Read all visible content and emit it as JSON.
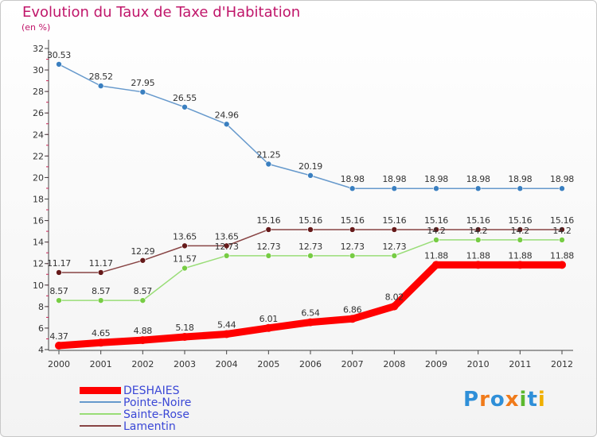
{
  "chart_data": {
    "type": "line",
    "title": "Evolution du Taux de Taxe d'Habitation",
    "unit_label": "(en %)",
    "x": [
      "2000",
      "2001",
      "2002",
      "2003",
      "2004",
      "2005",
      "2006",
      "2007",
      "2008",
      "2009",
      "2010",
      "2011",
      "2012"
    ],
    "ylim": [
      4,
      32
    ],
    "yticks": [
      4,
      6,
      8,
      10,
      12,
      14,
      16,
      18,
      20,
      22,
      24,
      26,
      28,
      30,
      32
    ],
    "grid": false,
    "legend_position": "bottom-left",
    "series": [
      {
        "name": "DESHAIES",
        "color": "#ff0000",
        "marker": "#ff0000",
        "values": [
          4.37,
          4.65,
          4.88,
          5.18,
          5.44,
          6.01,
          6.54,
          6.86,
          8.02,
          11.88,
          11.88,
          11.88,
          11.88
        ],
        "labels": [
          "4.37",
          "4.65",
          "4.88",
          "5.18",
          "5.44",
          "6.01",
          "6.54",
          "6.86",
          "8.02",
          "11.88",
          "11.88",
          "11.88",
          "11.88"
        ]
      },
      {
        "name": "Pointe-Noire",
        "color": "#6699cc",
        "marker": "#3a7fc0",
        "values": [
          30.53,
          28.52,
          27.95,
          26.55,
          24.96,
          21.25,
          20.19,
          18.98,
          18.98,
          18.98,
          18.98,
          18.98,
          18.98
        ],
        "labels": [
          "30.53",
          "28.52",
          "27.95",
          "26.55",
          "24.96",
          "21.25",
          "20.19",
          "18.98",
          "18.98",
          "18.98",
          "18.98",
          "18.98",
          "18.98"
        ]
      },
      {
        "name": "Sainte-Rose",
        "color": "#99dd77",
        "marker": "#77cc44",
        "values": [
          8.57,
          8.57,
          8.57,
          11.57,
          12.73,
          12.73,
          12.73,
          12.73,
          12.73,
          14.2,
          14.2,
          14.2,
          14.2
        ],
        "labels": [
          "8.57",
          "8.57",
          "8.57",
          "11.57",
          "12.73",
          "12.73",
          "12.73",
          "12.73",
          "12.73",
          "14.2",
          "14.2",
          "14.2",
          "14.2"
        ]
      },
      {
        "name": "Lamentin",
        "color": "#884444",
        "marker": "#661a1a",
        "values": [
          11.17,
          11.17,
          12.29,
          13.65,
          13.65,
          15.16,
          15.16,
          15.16,
          15.16,
          15.16,
          15.16,
          15.16,
          15.16
        ],
        "labels": [
          "11.17",
          "11.17",
          "12.29",
          "13.65",
          "13.65",
          "15.16",
          "15.16",
          "15.16",
          "15.16",
          "15.16",
          "15.16",
          "15.16",
          "15.16"
        ]
      }
    ]
  },
  "logo": {
    "letters": [
      "P",
      "r",
      "o",
      "x",
      "i",
      "t",
      "i"
    ],
    "colors": [
      "#2f8fd8",
      "#f07a1a",
      "#2f8fd8",
      "#f07a1a",
      "#5cb82e",
      "#2f8fd8",
      "#f0b000"
    ]
  }
}
